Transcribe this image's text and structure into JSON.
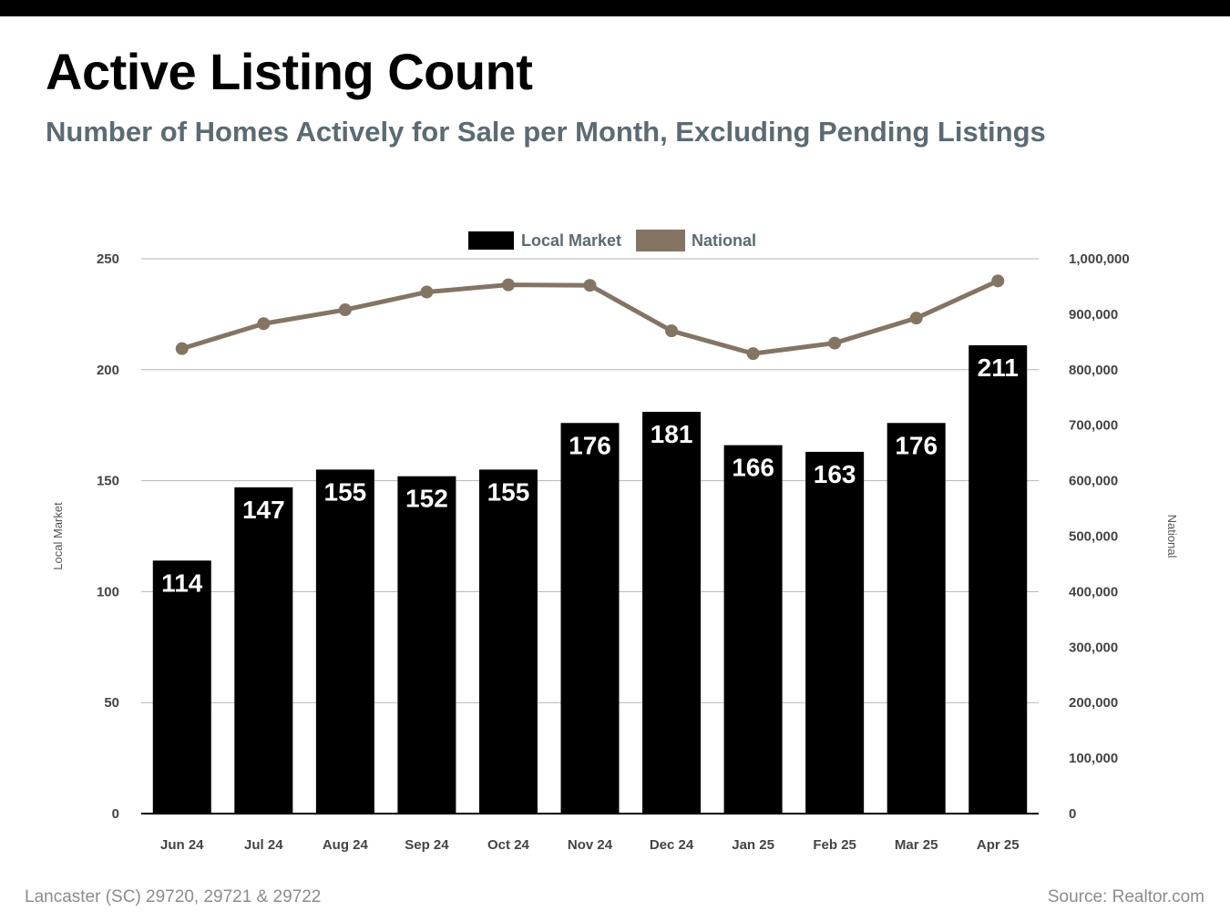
{
  "header": {
    "title": "Active Listing Count",
    "subtitle": "Number of Homes Actively for Sale per Month, Excluding Pending Listings"
  },
  "footer": {
    "location": "Lancaster (SC) 29720, 29721 & 29722",
    "source": "Source: Realtor.com"
  },
  "colors": {
    "local": "#000000",
    "national": "#847563",
    "grid": "#b5b5b5"
  },
  "chart_data": {
    "type": "bar",
    "categories": [
      "Jun 24",
      "Jul 24",
      "Aug 24",
      "Sep 24",
      "Oct 24",
      "Nov 24",
      "Dec 24",
      "Jan 25",
      "Feb 25",
      "Mar 25",
      "Apr 25"
    ],
    "series": [
      {
        "name": "Local Market",
        "type": "bar",
        "axis": "left",
        "values": [
          114,
          147,
          155,
          152,
          155,
          176,
          181,
          166,
          163,
          176,
          211
        ]
      },
      {
        "name": "National",
        "type": "line",
        "axis": "right",
        "values": [
          838000,
          883000,
          908000,
          940000,
          953000,
          952000,
          870000,
          829000,
          848000,
          893000,
          960000
        ]
      }
    ],
    "ylabel": "Local Market",
    "y2label": "National",
    "ylim": [
      0,
      250
    ],
    "y2lim": [
      0,
      1000000
    ],
    "yticks": [
      "0",
      "50",
      "100",
      "150",
      "200",
      "250"
    ],
    "y2ticks": [
      "0",
      "100,000",
      "200,000",
      "300,000",
      "400,000",
      "500,000",
      "600,000",
      "700,000",
      "800,000",
      "900,000",
      "1,000,000"
    ],
    "grid": true,
    "legend": "top-center"
  }
}
